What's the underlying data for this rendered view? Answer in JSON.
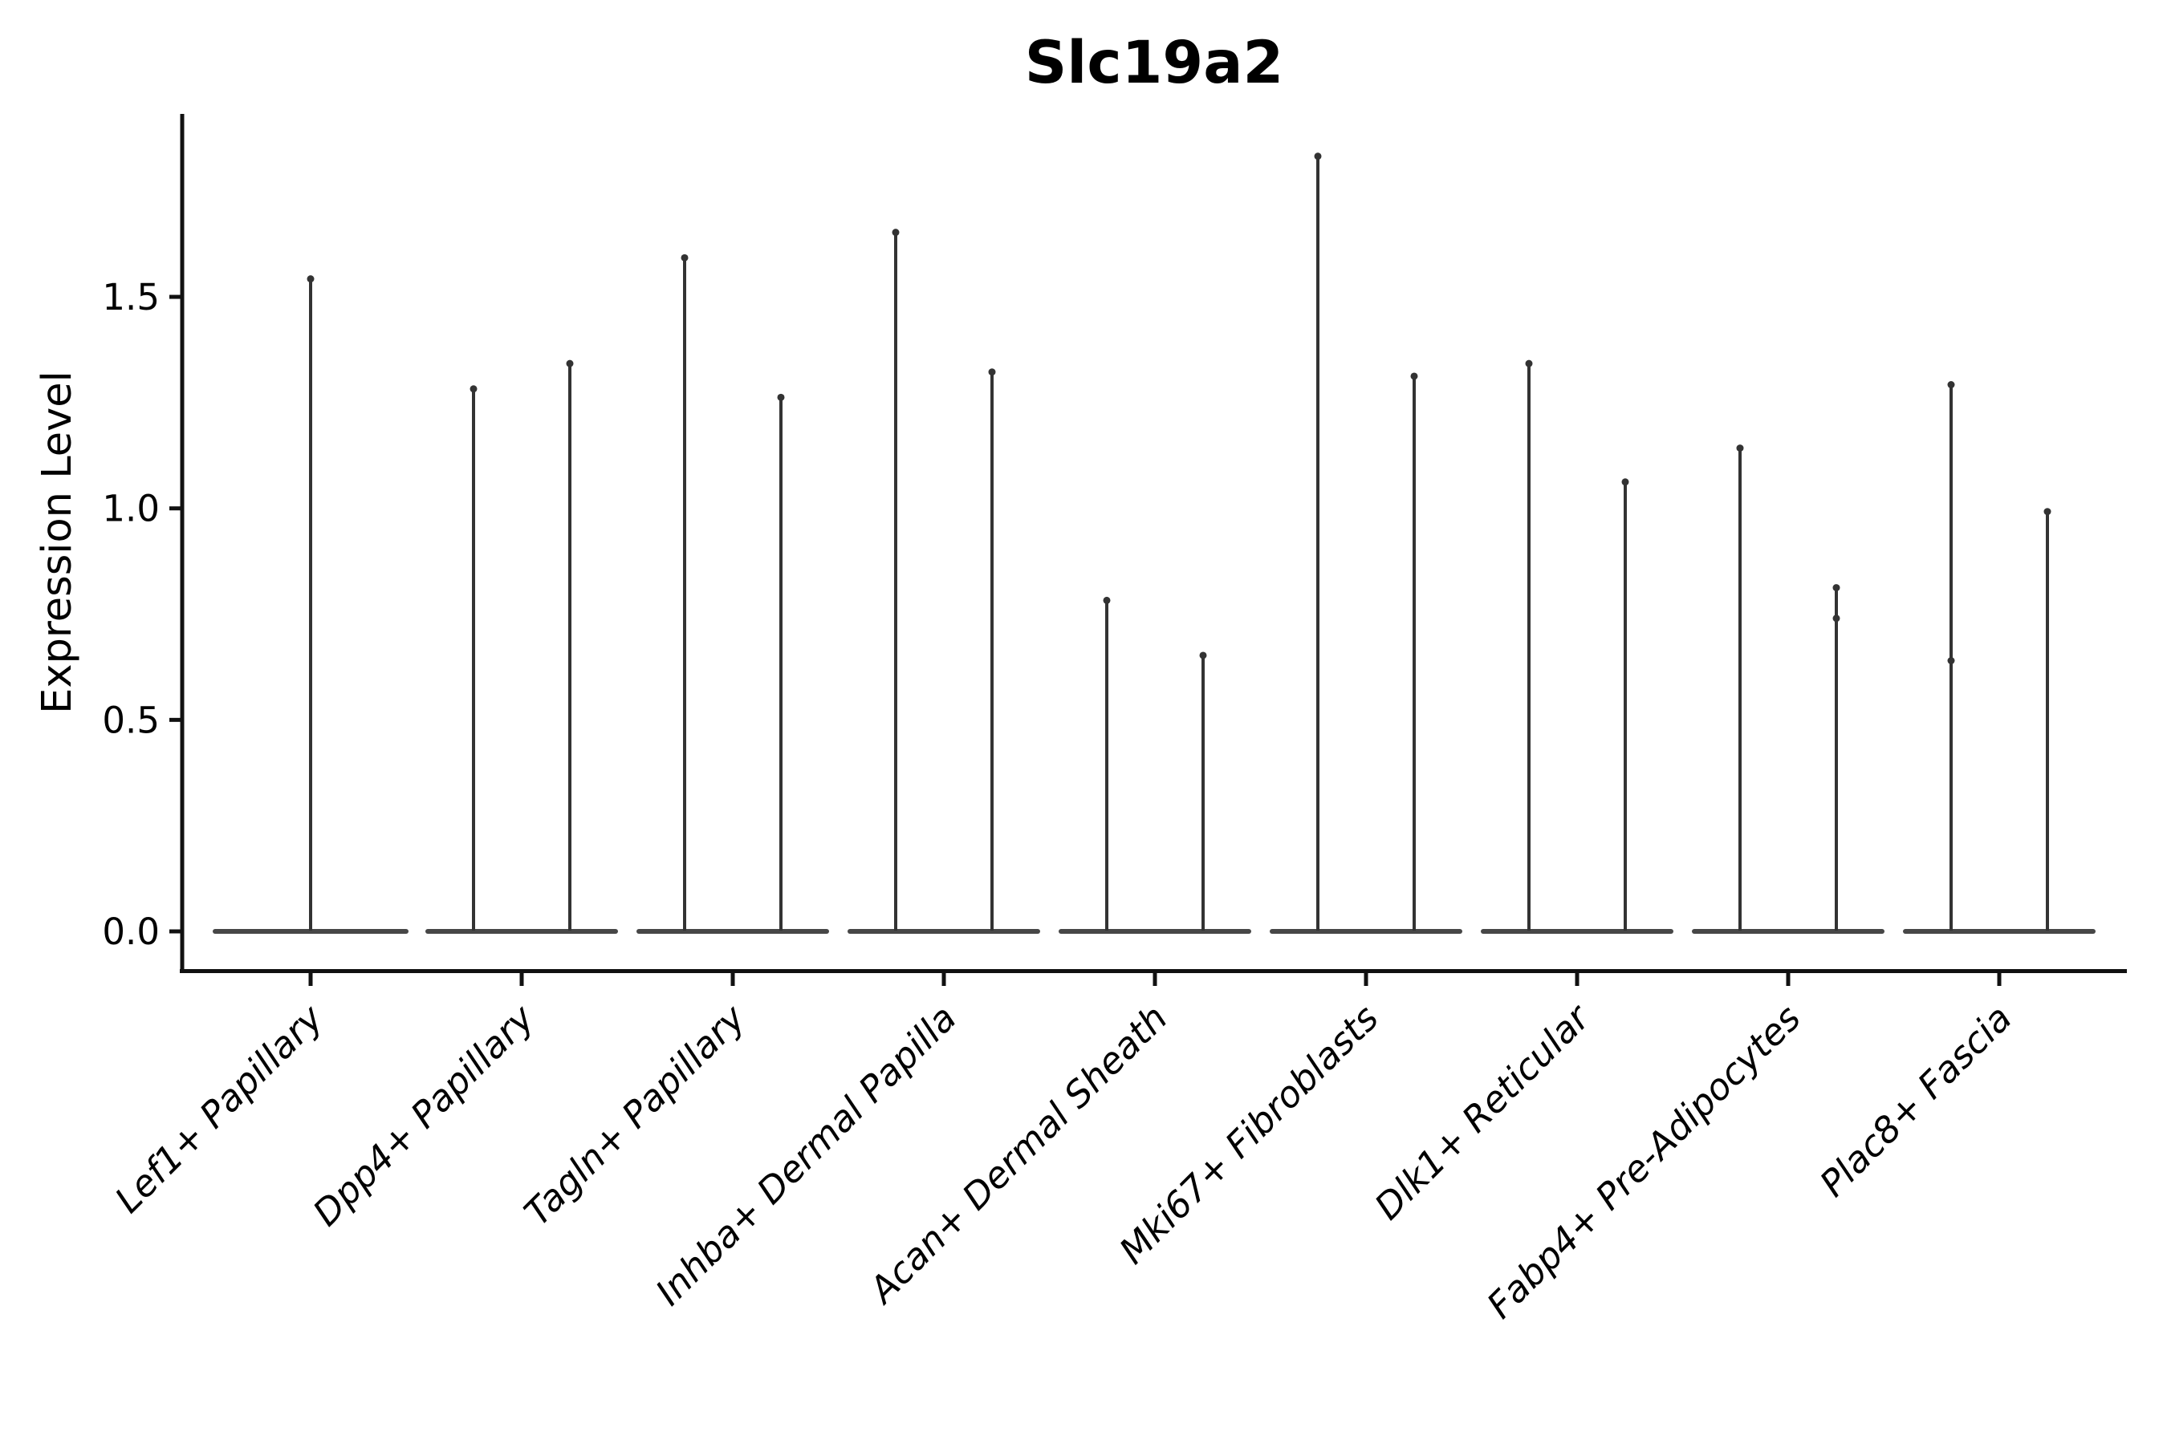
{
  "figure": {
    "title": "Slc19a2",
    "ylabel": "Expression Level"
  },
  "chart_data": {
    "type": "violin",
    "title": "Slc19a2",
    "xlabel": "",
    "ylabel": "Expression Level",
    "yticks": [
      0.0,
      0.5,
      1.0,
      1.5
    ],
    "ytick_labels": [
      "0.0",
      "0.5",
      "1.0",
      "1.5"
    ],
    "ylim": [
      -0.09,
      1.93
    ],
    "grid": false,
    "legend_position": "none",
    "style_note": "needle-shaped violins: wide flat density mass at expression 0 with a thin vertical spike reaching the maximum expression value; dark gray fill, despined top/right, x labels rotated 45deg italic",
    "violin_color": "#333333",
    "baseline_color": "#474747",
    "categories": [
      "Lef1+ Papillary",
      "Dpp4+ Papillary",
      "Tagln+ Papillary",
      "Inhba+ Dermal Papilla",
      "Acan+ Dermal Sheath",
      "Mki67+ Fibroblasts",
      "Dlk1+ Reticular",
      "Fabp4+ Pre-Adipocytes",
      "Plac8+ Fascia"
    ],
    "series": [
      {
        "category": "Lef1+ Papillary",
        "violin_max": [
          1.55
        ],
        "bumps": [
          []
        ]
      },
      {
        "category": "Dpp4+ Papillary",
        "violin_max": [
          1.29,
          1.35
        ],
        "bumps": [
          [],
          []
        ]
      },
      {
        "category": "Tagln+ Papillary",
        "violin_max": [
          1.6,
          1.27
        ],
        "bumps": [
          [],
          []
        ]
      },
      {
        "category": "Inhba+ Dermal Papilla",
        "violin_max": [
          1.66,
          1.33
        ],
        "bumps": [
          [],
          []
        ]
      },
      {
        "category": "Acan+ Dermal Sheath",
        "violin_max": [
          0.79,
          0.66
        ],
        "bumps": [
          [],
          []
        ]
      },
      {
        "category": "Mki67+ Fibroblasts",
        "violin_max": [
          1.84,
          1.32
        ],
        "bumps": [
          [],
          []
        ]
      },
      {
        "category": "Dlk1+ Reticular",
        "violin_max": [
          1.35,
          1.07
        ],
        "bumps": [
          [],
          []
        ]
      },
      {
        "category": "Fabp4+ Pre-Adipocytes",
        "violin_max": [
          1.15,
          0.82
        ],
        "bumps": [
          [],
          [
            0.74
          ]
        ]
      },
      {
        "category": "Plac8+ Fascia",
        "violin_max": [
          1.3,
          1.0
        ],
        "bumps": [
          [
            0.64
          ],
          []
        ]
      }
    ],
    "baseline_value": 0.0
  }
}
